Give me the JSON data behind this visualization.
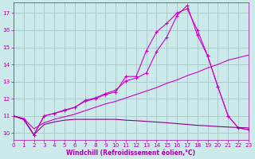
{
  "bg_color": "#cceaea",
  "grid_color": "#aacccc",
  "line_color_bright": "#cc00cc",
  "line_color_dark": "#880088",
  "x_min": 0,
  "x_max": 23,
  "y_min": 9.6,
  "y_max": 17.6,
  "xlabel": "Windchill (Refroidissement éolien,°C)",
  "xlabel_color": "#aa00aa",
  "tick_color": "#aa00aa",
  "yticks": [
    10,
    11,
    12,
    13,
    14,
    15,
    16,
    17
  ],
  "xticks": [
    0,
    1,
    2,
    3,
    4,
    5,
    6,
    7,
    8,
    9,
    10,
    11,
    12,
    13,
    14,
    15,
    16,
    17,
    18,
    19,
    20,
    21,
    22,
    23
  ],
  "line1_x": [
    0,
    1,
    2,
    3,
    4,
    5,
    6,
    7,
    8,
    9,
    10,
    11,
    12,
    13,
    14,
    15,
    16,
    17,
    18,
    19,
    20,
    21,
    22,
    23
  ],
  "line1_y": [
    11.0,
    10.8,
    9.9,
    11.0,
    11.15,
    11.3,
    11.5,
    11.85,
    12.0,
    12.25,
    12.4,
    13.3,
    13.3,
    14.8,
    15.9,
    16.4,
    17.0,
    17.25,
    16.0,
    14.5,
    12.7,
    11.0,
    10.3,
    10.2
  ],
  "line2_x": [
    0,
    1,
    2,
    3,
    4,
    5,
    6,
    7,
    8,
    9,
    10,
    11,
    12,
    13,
    14,
    15,
    16,
    17,
    18,
    19,
    20,
    21,
    22,
    23
  ],
  "line2_y": [
    11.0,
    10.8,
    9.9,
    11.0,
    11.15,
    11.35,
    11.5,
    11.9,
    12.05,
    12.3,
    12.5,
    13.05,
    13.2,
    13.5,
    14.75,
    15.6,
    16.85,
    17.45,
    15.7,
    14.5,
    12.7,
    11.0,
    10.3,
    10.2
  ],
  "line3_x": [
    0,
    1,
    2,
    3,
    4,
    5,
    6,
    7,
    8,
    9,
    10,
    11,
    12,
    13,
    14,
    15,
    16,
    17,
    18,
    19,
    20,
    21,
    22,
    23
  ],
  "line3_y": [
    11.0,
    10.85,
    10.25,
    10.6,
    10.8,
    10.95,
    11.1,
    11.3,
    11.5,
    11.7,
    11.85,
    12.05,
    12.25,
    12.45,
    12.65,
    12.9,
    13.1,
    13.35,
    13.55,
    13.8,
    14.0,
    14.25,
    14.4,
    14.55
  ],
  "line4_x": [
    0,
    1,
    2,
    3,
    4,
    5,
    6,
    7,
    8,
    9,
    10,
    11,
    12,
    13,
    14,
    15,
    16,
    17,
    18,
    19,
    20,
    21,
    22,
    23
  ],
  "line4_y": [
    11.0,
    10.8,
    9.9,
    10.5,
    10.65,
    10.75,
    10.8,
    10.8,
    10.8,
    10.8,
    10.8,
    10.75,
    10.72,
    10.68,
    10.64,
    10.6,
    10.55,
    10.5,
    10.45,
    10.42,
    10.38,
    10.35,
    10.32,
    10.3
  ]
}
